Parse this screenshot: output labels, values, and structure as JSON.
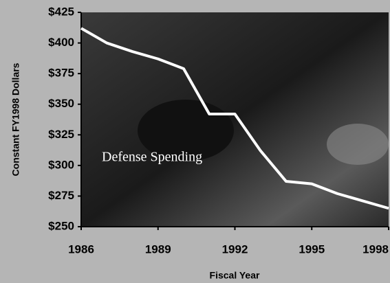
{
  "chart_data": {
    "type": "line",
    "x_label": "Fiscal Year",
    "y_label": "Constant FY1998 Dollars",
    "annotation": "Defense Spending",
    "x": [
      1986,
      1987,
      1988,
      1989,
      1990,
      1991,
      1992,
      1993,
      1994,
      1995,
      1996,
      1997,
      1998
    ],
    "series": [
      {
        "color": "#ffffff",
        "values": [
          412,
          400,
          393,
          387,
          379,
          342,
          342,
          312,
          287,
          285,
          277,
          271,
          265
        ]
      }
    ],
    "xlim": [
      1986,
      1998
    ],
    "xticks": [
      1986,
      1989,
      1992,
      1995,
      1998
    ],
    "ylim": [
      250,
      425
    ],
    "yticks": [
      {
        "value": 250,
        "label": "$250"
      },
      {
        "value": 275,
        "label": "$275"
      },
      {
        "value": 300,
        "label": "$300"
      },
      {
        "value": 325,
        "label": "$325"
      },
      {
        "value": 350,
        "label": "$350"
      },
      {
        "value": 375,
        "label": "$375"
      },
      {
        "value": 400,
        "label": "$400"
      },
      {
        "value": 425,
        "label": "$425"
      }
    ]
  }
}
